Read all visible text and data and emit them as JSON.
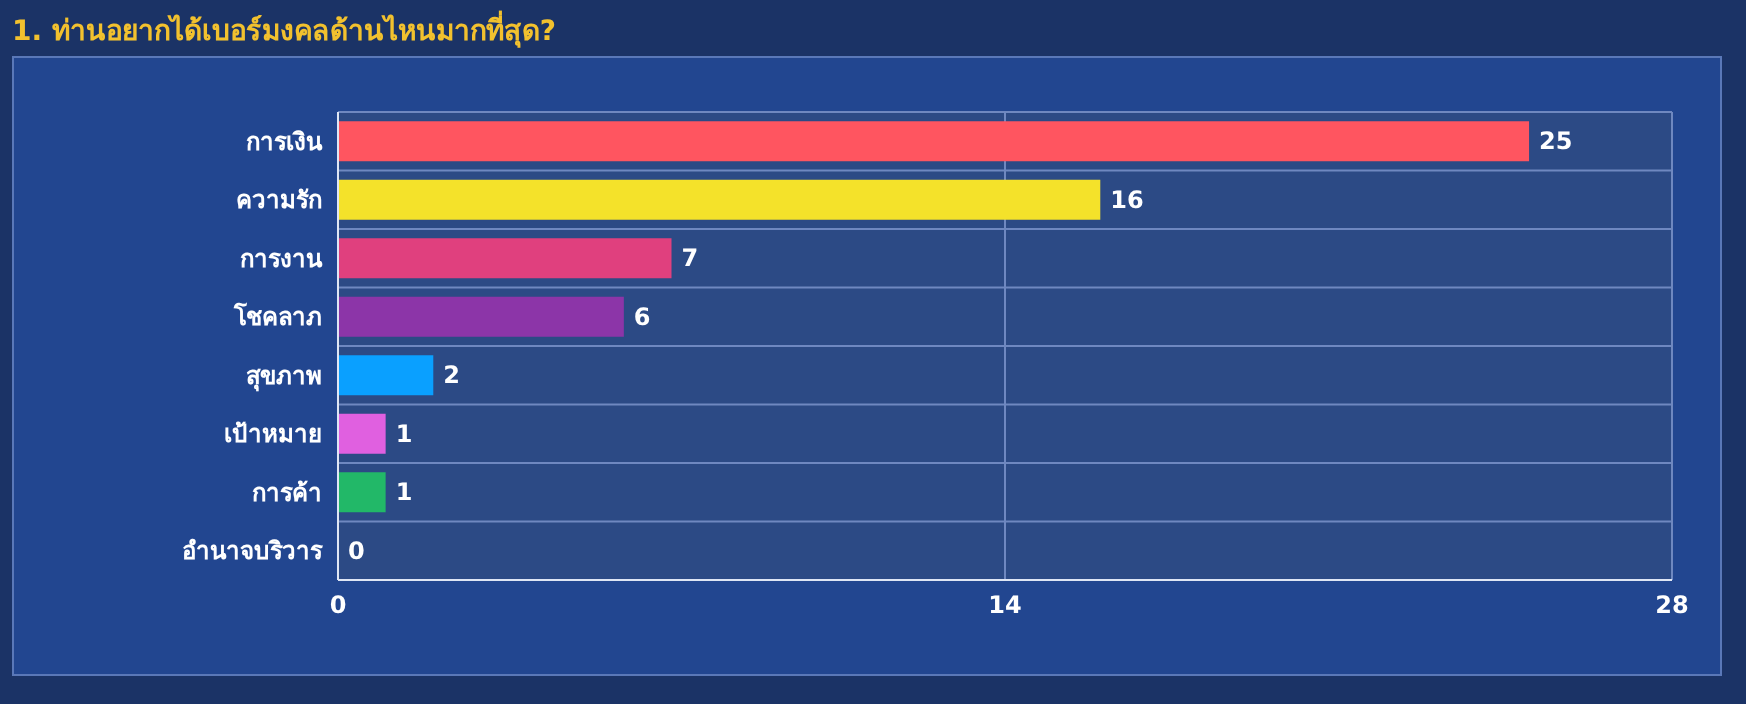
{
  "chart_data": {
    "type": "bar",
    "orientation": "horizontal",
    "title": "1. ท่านอยากได้เบอร์มงคลด้านไหนมากที่สุด?",
    "categories": [
      "การเงิน",
      "ความรัก",
      "การงาน",
      "โชคลาภ",
      "สุขภาพ",
      "เป้าหมาย",
      "การค้า",
      "อำนาจบริวาร"
    ],
    "values": [
      25,
      16,
      7,
      6,
      2,
      1,
      1,
      0
    ],
    "colors": [
      "#ff5560",
      "#f4e22a",
      "#e0407e",
      "#8c35a8",
      "#0aa0ff",
      "#e060e0",
      "#22b868",
      "#ff9900"
    ],
    "xlim": [
      0,
      28
    ],
    "xticks": [
      0,
      14,
      28
    ],
    "grid": true,
    "data_labels": true,
    "legend": false
  }
}
